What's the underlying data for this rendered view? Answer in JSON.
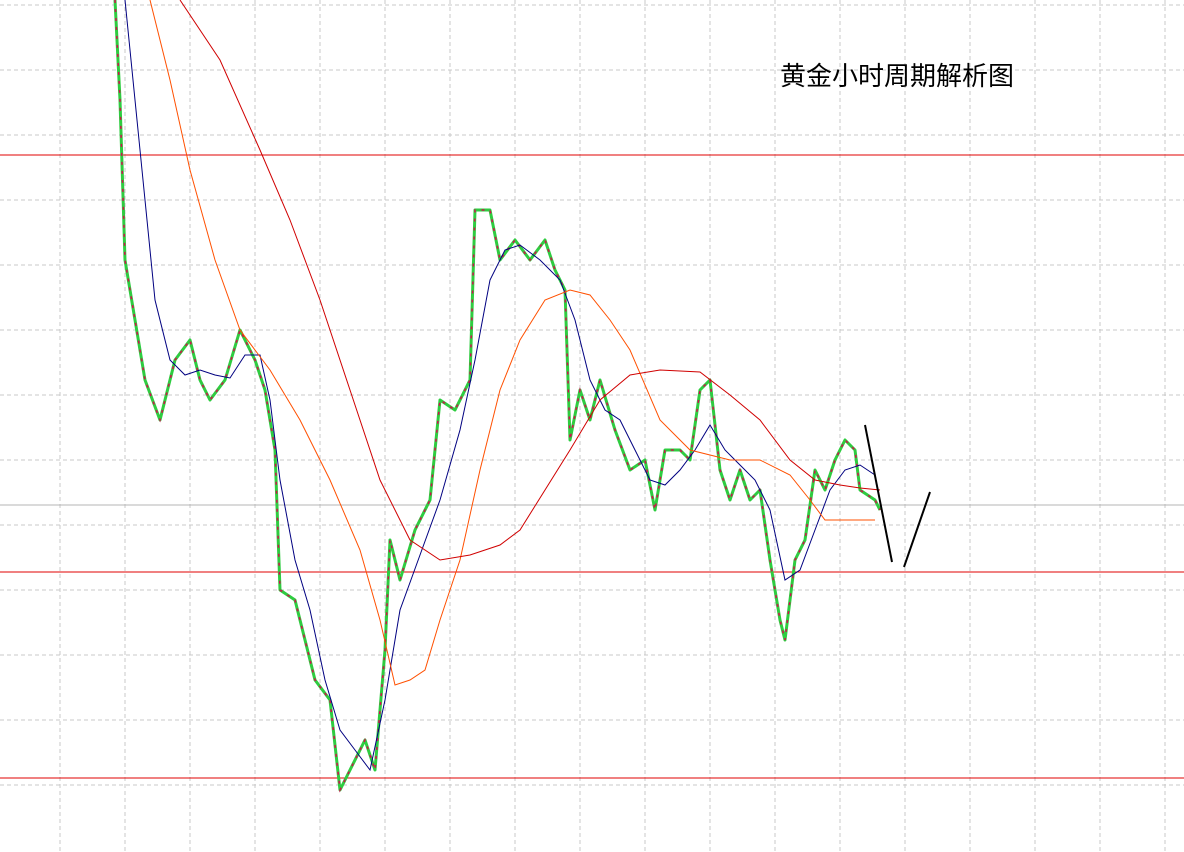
{
  "title": "黄金小时周期解析图"
}
